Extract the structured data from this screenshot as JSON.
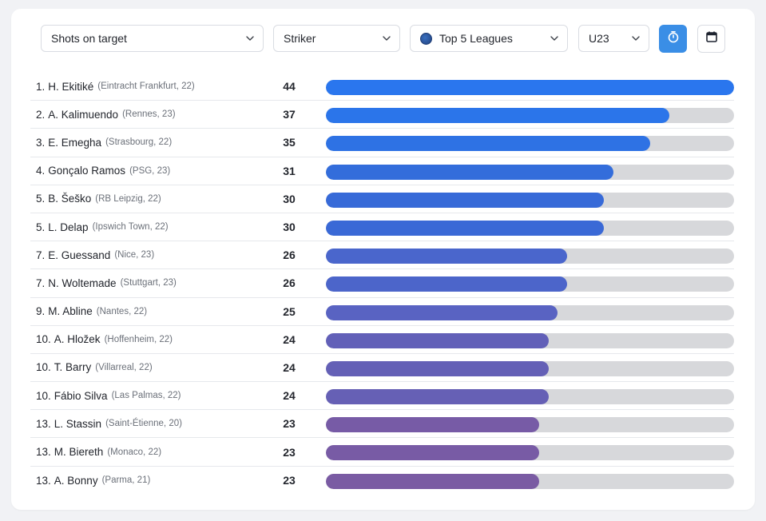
{
  "filters": {
    "metric": "Shots on target",
    "position": "Striker",
    "league": "Top 5 Leagues",
    "age": "U23"
  },
  "toolbar": {
    "stopwatch_icon": "stopwatch-icon",
    "calendar_icon": "calendar-icon",
    "active_color": "#3a8ee6"
  },
  "ranking": {
    "max_value": 44,
    "rows": [
      {
        "rank": "1.",
        "name": "H. Ekitiké",
        "meta": "(Eintracht Frankfurt, 22)",
        "value": 44,
        "color": "#2a76ee"
      },
      {
        "rank": "2.",
        "name": "A. Kalimuendo",
        "meta": "(Rennes, 23)",
        "value": 37,
        "color": "#2b75ea"
      },
      {
        "rank": "3.",
        "name": "E. Emegha",
        "meta": "(Strasbourg, 22)",
        "value": 35,
        "color": "#2e72e4"
      },
      {
        "rank": "4.",
        "name": "Gonçalo Ramos",
        "meta": "(PSG, 23)",
        "value": 31,
        "color": "#336ddb"
      },
      {
        "rank": "5.",
        "name": "B. Šeško",
        "meta": "(RB Leipzig, 22)",
        "value": 30,
        "color": "#376ad8"
      },
      {
        "rank": "5.",
        "name": "L. Delap",
        "meta": "(Ipswich Town, 22)",
        "value": 30,
        "color": "#3a69d6"
      },
      {
        "rank": "7.",
        "name": "E. Guessand",
        "meta": "(Nice, 23)",
        "value": 26,
        "color": "#4a66cc"
      },
      {
        "rank": "7.",
        "name": "N. Woltemade",
        "meta": "(Stuttgart, 23)",
        "value": 26,
        "color": "#4c65ca"
      },
      {
        "rank": "9.",
        "name": "M. Abline",
        "meta": "(Nantes, 22)",
        "value": 25,
        "color": "#5963c2"
      },
      {
        "rank": "10.",
        "name": "A. Hložek",
        "meta": "(Hoffenheim, 22)",
        "value": 24,
        "color": "#6260b8"
      },
      {
        "rank": "10.",
        "name": "T. Barry",
        "meta": "(Villarreal, 22)",
        "value": 24,
        "color": "#6460b6"
      },
      {
        "rank": "10.",
        "name": "Fábio Silva",
        "meta": "(Las Palmas, 22)",
        "value": 24,
        "color": "#6660b5"
      },
      {
        "rank": "13.",
        "name": "L. Stassin",
        "meta": "(Saint-Étienne, 20)",
        "value": 23,
        "color": "#775ba6"
      },
      {
        "rank": "13.",
        "name": "M. Biereth",
        "meta": "(Monaco, 22)",
        "value": 23,
        "color": "#785ba5"
      },
      {
        "rank": "13.",
        "name": "A. Bonny",
        "meta": "(Parma, 21)",
        "value": 23,
        "color": "#7a5ba3"
      }
    ]
  }
}
